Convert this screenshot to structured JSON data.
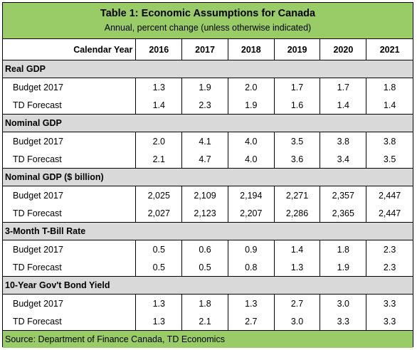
{
  "title": "Table 1: Economic Assumptions for Canada",
  "subtitle": "Annual, percent change (unless otherwise indicated)",
  "header": {
    "label": "Calendar Year",
    "years": [
      "2016",
      "2017",
      "2018",
      "2019",
      "2020",
      "2021"
    ]
  },
  "sections": [
    {
      "name": "Real GDP",
      "rows": [
        {
          "label": "Budget 2017",
          "values": [
            "1.3",
            "1.9",
            "2.0",
            "1.7",
            "1.7",
            "1.8"
          ]
        },
        {
          "label": "TD Forecast",
          "values": [
            "1.4",
            "2.3",
            "1.9",
            "1.6",
            "1.4",
            "1.4"
          ]
        }
      ]
    },
    {
      "name": "Nominal GDP",
      "rows": [
        {
          "label": "Budget 2017",
          "values": [
            "2.0",
            "4.1",
            "4.0",
            "3.5",
            "3.8",
            "3.8"
          ]
        },
        {
          "label": "TD Forecast",
          "values": [
            "2.1",
            "4.7",
            "4.0",
            "3.6",
            "3.4",
            "3.5"
          ]
        }
      ]
    },
    {
      "name": "Nominal GDP ($ billion)",
      "rows": [
        {
          "label": "Budget 2017",
          "values": [
            "2,025",
            "2,109",
            "2,194",
            "2,271",
            "2,357",
            "2,447"
          ]
        },
        {
          "label": "TD Forecast",
          "values": [
            "2,027",
            "2,123",
            "2,207",
            "2,286",
            "2,365",
            "2,447"
          ]
        }
      ]
    },
    {
      "name": "3-Month T-Bill Rate",
      "rows": [
        {
          "label": "Budget 2017",
          "values": [
            "0.5",
            "0.6",
            "0.9",
            "1.4",
            "1.8",
            "2.3"
          ]
        },
        {
          "label": "TD Forecast",
          "values": [
            "0.5",
            "0.5",
            "0.8",
            "1.3",
            "1.9",
            "2.3"
          ]
        }
      ]
    },
    {
      "name": "10-Year Gov't Bond Yield",
      "rows": [
        {
          "label": "Budget 2017",
          "values": [
            "1.3",
            "1.8",
            "1.3",
            "2.7",
            "3.0",
            "3.3"
          ]
        },
        {
          "label": "TD Forecast",
          "values": [
            "1.3",
            "2.1",
            "2.7",
            "3.0",
            "3.3",
            "3.3"
          ]
        }
      ]
    }
  ],
  "source": "Source: Department of Finance Canada, TD Economics",
  "colors": {
    "band": "#99cc66",
    "section": "#d9d9d9"
  }
}
